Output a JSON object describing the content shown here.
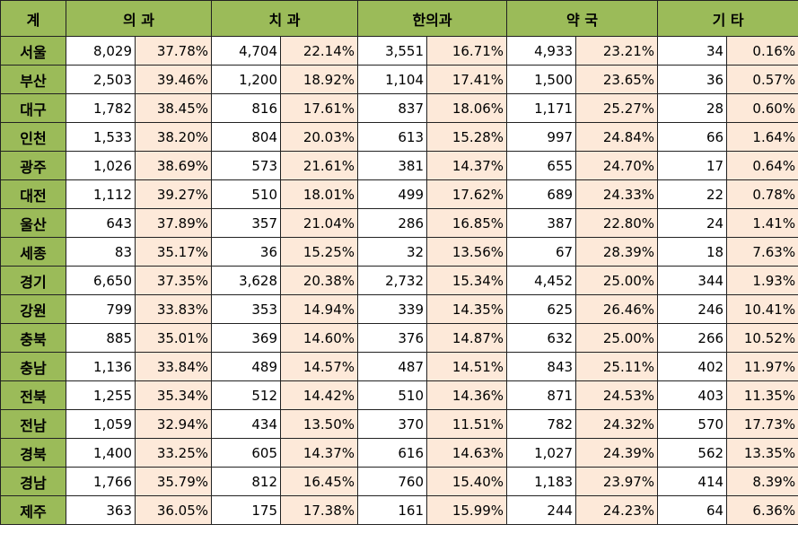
{
  "header": {
    "region": "계",
    "groups": [
      "의 과",
      "치 과",
      "한의과",
      "약 국",
      "기 타"
    ]
  },
  "rows": [
    {
      "region": "서울",
      "cells": [
        "8,029",
        "37.78%",
        "4,704",
        "22.14%",
        "3,551",
        "16.71%",
        "4,933",
        "23.21%",
        "34",
        "0.16%"
      ]
    },
    {
      "region": "부산",
      "cells": [
        "2,503",
        "39.46%",
        "1,200",
        "18.92%",
        "1,104",
        "17.41%",
        "1,500",
        "23.65%",
        "36",
        "0.57%"
      ]
    },
    {
      "region": "대구",
      "cells": [
        "1,782",
        "38.45%",
        "816",
        "17.61%",
        "837",
        "18.06%",
        "1,171",
        "25.27%",
        "28",
        "0.60%"
      ]
    },
    {
      "region": "인천",
      "cells": [
        "1,533",
        "38.20%",
        "804",
        "20.03%",
        "613",
        "15.28%",
        "997",
        "24.84%",
        "66",
        "1.64%"
      ]
    },
    {
      "region": "광주",
      "cells": [
        "1,026",
        "38.69%",
        "573",
        "21.61%",
        "381",
        "14.37%",
        "655",
        "24.70%",
        "17",
        "0.64%"
      ]
    },
    {
      "region": "대전",
      "cells": [
        "1,112",
        "39.27%",
        "510",
        "18.01%",
        "499",
        "17.62%",
        "689",
        "24.33%",
        "22",
        "0.78%"
      ]
    },
    {
      "region": "울산",
      "cells": [
        "643",
        "37.89%",
        "357",
        "21.04%",
        "286",
        "16.85%",
        "387",
        "22.80%",
        "24",
        "1.41%"
      ]
    },
    {
      "region": "세종",
      "cells": [
        "83",
        "35.17%",
        "36",
        "15.25%",
        "32",
        "13.56%",
        "67",
        "28.39%",
        "18",
        "7.63%"
      ]
    },
    {
      "region": "경기",
      "cells": [
        "6,650",
        "37.35%",
        "3,628",
        "20.38%",
        "2,732",
        "15.34%",
        "4,452",
        "25.00%",
        "344",
        "1.93%"
      ]
    },
    {
      "region": "강원",
      "cells": [
        "799",
        "33.83%",
        "353",
        "14.94%",
        "339",
        "14.35%",
        "625",
        "26.46%",
        "246",
        "10.41%"
      ]
    },
    {
      "region": "충북",
      "cells": [
        "885",
        "35.01%",
        "369",
        "14.60%",
        "376",
        "14.87%",
        "632",
        "25.00%",
        "266",
        "10.52%"
      ]
    },
    {
      "region": "충남",
      "cells": [
        "1,136",
        "33.84%",
        "489",
        "14.57%",
        "487",
        "14.51%",
        "843",
        "25.11%",
        "402",
        "11.97%"
      ]
    },
    {
      "region": "전북",
      "cells": [
        "1,255",
        "35.34%",
        "512",
        "14.42%",
        "510",
        "14.36%",
        "871",
        "24.53%",
        "403",
        "11.35%"
      ]
    },
    {
      "region": "전남",
      "cells": [
        "1,059",
        "32.94%",
        "434",
        "13.50%",
        "370",
        "11.51%",
        "782",
        "24.32%",
        "570",
        "17.73%"
      ]
    },
    {
      "region": "경북",
      "cells": [
        "1,400",
        "33.25%",
        "605",
        "14.37%",
        "616",
        "14.63%",
        "1,027",
        "24.39%",
        "562",
        "13.35%"
      ]
    },
    {
      "region": "경남",
      "cells": [
        "1,766",
        "35.79%",
        "812",
        "16.45%",
        "760",
        "15.40%",
        "1,183",
        "23.97%",
        "414",
        "8.39%"
      ]
    },
    {
      "region": "제주",
      "cells": [
        "363",
        "36.05%",
        "175",
        "17.38%",
        "161",
        "15.99%",
        "244",
        "24.23%",
        "64",
        "6.36%"
      ]
    }
  ],
  "colors": {
    "header_bg": "#9bbb59",
    "percent_bg": "#fde9d9",
    "count_bg": "#ffffff",
    "border": "#222222"
  }
}
